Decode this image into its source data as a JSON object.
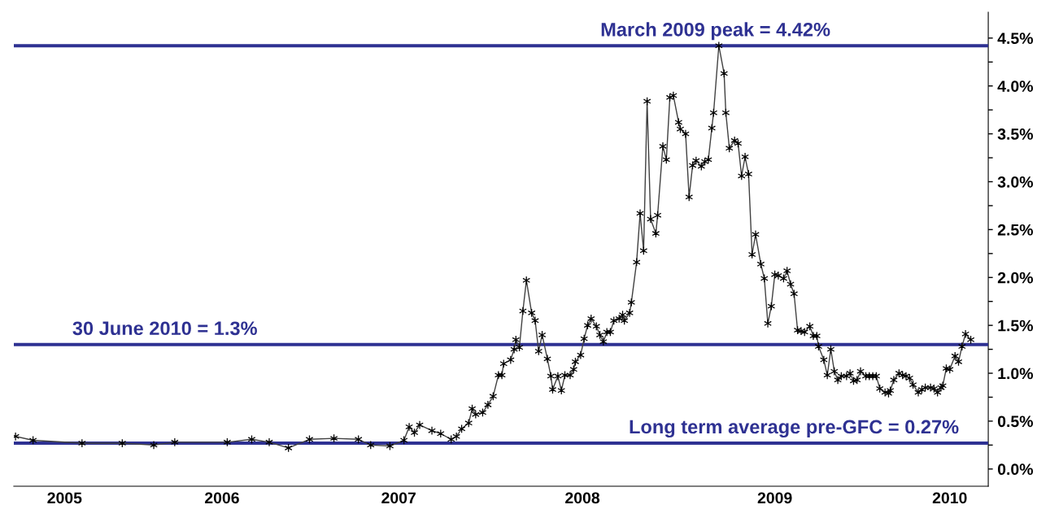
{
  "chart_data": {
    "type": "line",
    "x": [
      2004.71,
      2004.81,
      2005.09,
      2005.32,
      2005.5,
      2005.62,
      2005.92,
      2006.06,
      2006.16,
      2006.27,
      2006.39,
      2006.53,
      2006.67,
      2006.74,
      2006.85,
      2006.93,
      2006.96,
      2006.99,
      2007.02,
      2007.09,
      2007.14,
      2007.2,
      2007.23,
      2007.26,
      2007.3,
      2007.32,
      2007.34,
      2007.38,
      2007.41,
      2007.44,
      2007.47,
      2007.49,
      2007.5,
      2007.54,
      2007.56,
      2007.57,
      2007.59,
      2007.61,
      2007.63,
      2007.66,
      2007.68,
      2007.7,
      2007.72,
      2007.75,
      2007.77,
      2007.78,
      2007.81,
      2007.83,
      2007.85,
      2007.88,
      2007.9,
      2007.91,
      2007.94,
      2007.96,
      2007.98,
      2008.0,
      2008.03,
      2008.05,
      2008.07,
      2008.09,
      2008.11,
      2008.13,
      2008.16,
      2008.18,
      2008.19,
      2008.22,
      2008.23,
      2008.26,
      2008.28,
      2008.3,
      2008.32,
      2008.34,
      2008.37,
      2008.38,
      2008.41,
      2008.43,
      2008.45,
      2008.47,
      2008.5,
      2008.51,
      2008.54,
      2008.56,
      2008.58,
      2008.6,
      2008.63,
      2008.65,
      2008.67,
      2008.69,
      2008.7,
      2008.73,
      2008.76,
      2008.77,
      2008.79,
      2008.82,
      2008.84,
      2008.86,
      2008.88,
      2008.9,
      2008.92,
      2008.94,
      2008.97,
      2008.99,
      2009.01,
      2009.03,
      2009.05,
      2009.07,
      2009.1,
      2009.12,
      2009.14,
      2009.16,
      2009.18,
      2009.2,
      2009.22,
      2009.25,
      2009.27,
      2009.29,
      2009.3,
      2009.33,
      2009.35,
      2009.37,
      2009.39,
      2009.41,
      2009.43,
      2009.46,
      2009.48,
      2009.5,
      2009.52,
      2009.54,
      2009.57,
      2009.59,
      2009.61,
      2009.63,
      2009.65,
      2009.68,
      2009.7,
      2009.71,
      2009.73,
      2009.76,
      2009.78,
      2009.8,
      2009.82,
      2009.84,
      2009.87,
      2009.89,
      2009.91,
      2009.94,
      2009.96,
      2009.98,
      2010.0,
      2010.01,
      2010.03,
      2010.05,
      2010.08,
      2010.1,
      2010.12,
      2010.14,
      2010.17
    ],
    "series": [
      {
        "color": "#000000",
        "values": [
          0.34,
          0.3,
          0.27,
          0.27,
          0.25,
          0.28,
          0.28,
          0.31,
          0.28,
          0.22,
          0.31,
          0.32,
          0.31,
          0.25,
          0.24,
          0.3,
          0.44,
          0.38,
          0.46,
          0.4,
          0.37,
          0.31,
          0.34,
          0.42,
          0.48,
          0.63,
          0.57,
          0.59,
          0.67,
          0.76,
          0.98,
          0.98,
          1.1,
          1.14,
          1.25,
          1.35,
          1.27,
          1.65,
          1.97,
          1.63,
          1.55,
          1.23,
          1.4,
          1.15,
          0.97,
          0.83,
          0.97,
          0.82,
          0.98,
          0.98,
          1.04,
          1.12,
          1.19,
          1.36,
          1.5,
          1.57,
          1.49,
          1.4,
          1.33,
          1.43,
          1.43,
          1.55,
          1.57,
          1.61,
          1.55,
          1.63,
          1.74,
          2.16,
          2.67,
          2.28,
          3.84,
          2.61,
          2.46,
          2.65,
          3.37,
          3.23,
          3.88,
          3.9,
          3.62,
          3.55,
          3.5,
          2.84,
          3.17,
          3.22,
          3.16,
          3.21,
          3.23,
          3.56,
          3.72,
          4.42,
          4.13,
          3.72,
          3.35,
          3.43,
          3.4,
          3.06,
          3.26,
          3.08,
          2.24,
          2.45,
          2.14,
          1.99,
          1.52,
          1.7,
          2.03,
          2.02,
          1.99,
          2.07,
          1.93,
          1.83,
          1.45,
          1.44,
          1.43,
          1.49,
          1.39,
          1.39,
          1.28,
          1.14,
          0.98,
          1.25,
          1.02,
          0.93,
          0.97,
          0.97,
          1.0,
          0.92,
          0.93,
          1.02,
          0.97,
          0.97,
          0.97,
          0.97,
          0.84,
          0.8,
          0.79,
          0.82,
          0.93,
          1.0,
          0.98,
          0.97,
          0.95,
          0.88,
          0.8,
          0.83,
          0.85,
          0.85,
          0.84,
          0.8,
          0.85,
          0.87,
          1.05,
          1.04,
          1.18,
          1.12,
          1.28,
          1.41,
          1.35
        ]
      }
    ],
    "xlim": [
      2004.7,
      2010.27
    ],
    "xticks": [
      {
        "value": 2004.99,
        "label": "2005"
      },
      {
        "value": 2005.89,
        "label": "2006"
      },
      {
        "value": 2006.9,
        "label": "2007"
      },
      {
        "value": 2007.95,
        "label": "2008"
      },
      {
        "value": 2009.05,
        "label": "2009"
      },
      {
        "value": 2010.05,
        "label": "2010"
      }
    ],
    "ylim": [
      -0.18,
      4.77
    ],
    "yticks": [
      {
        "value": 0,
        "label": "0.0%"
      },
      {
        "value": 0.25,
        "label": null
      },
      {
        "value": 0.5,
        "label": "0.5%"
      },
      {
        "value": 0.75,
        "label": null
      },
      {
        "value": 1,
        "label": "1.0%"
      },
      {
        "value": 1.25,
        "label": null
      },
      {
        "value": 1.5,
        "label": "1.5%"
      },
      {
        "value": 1.75,
        "label": null
      },
      {
        "value": 2,
        "label": "2.0%"
      },
      {
        "value": 2.25,
        "label": null
      },
      {
        "value": 2.5,
        "label": "2.5%"
      },
      {
        "value": 2.75,
        "label": null
      },
      {
        "value": 3,
        "label": "3.0%"
      },
      {
        "value": 3.25,
        "label": null
      },
      {
        "value": 3.5,
        "label": "3.5%"
      },
      {
        "value": 3.75,
        "label": null
      },
      {
        "value": 4,
        "label": "4.0%"
      },
      {
        "value": 4.25,
        "label": null
      },
      {
        "value": 4.5,
        "label": "4.5%"
      }
    ],
    "ref_lines": [
      {
        "axis": "y",
        "value": 4.42,
        "label": "March 2009 peak = 4.42%",
        "color": "#2e3192"
      },
      {
        "axis": "y",
        "value": 1.3,
        "label": "30 June 2010 = 1.3%",
        "color": "#2e3192"
      },
      {
        "axis": "y",
        "value": 0.27,
        "label": "Long term average pre-GFC = 0.27%",
        "color": "#2e3192"
      }
    ],
    "marker": "cross",
    "line_style": "solid",
    "grid": false,
    "legend": false
  }
}
